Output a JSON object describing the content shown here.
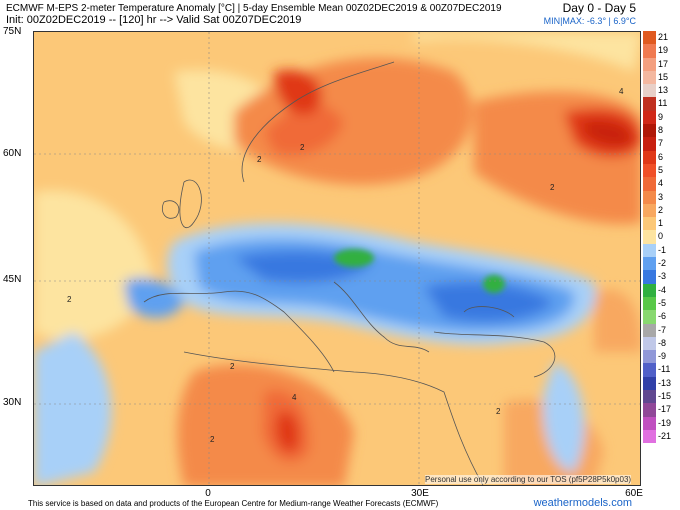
{
  "header": {
    "line1": "ECMWF M-EPS 2-meter Temperature Anomaly [°C] | 5-day Ensemble Mean 00Z02DEC2019 & 00Z07DEC2019",
    "line2": "Init: 00Z02DEC2019 -- [120] hr --> Valid Sat 00Z07DEC2019",
    "days": "Day 0 - Day 5",
    "minmax": "MIN|MAX: -6.3° | 6.9°C"
  },
  "axes": {
    "lat_labels": [
      "75N",
      "60N",
      "45N",
      "30N"
    ],
    "lon_labels": [
      "0",
      "30E",
      "60E"
    ]
  },
  "contour_labels": [
    "2",
    "2",
    "4",
    "2",
    "2",
    "2",
    "2",
    "4",
    "2"
  ],
  "legend": {
    "items": [
      {
        "label": "21",
        "color": "#e05a20"
      },
      {
        "label": "19",
        "color": "#f07a50"
      },
      {
        "label": "17",
        "color": "#f4a080"
      },
      {
        "label": "15",
        "color": "#f4b8a0"
      },
      {
        "label": "13",
        "color": "#e8d0c8"
      },
      {
        "label": "11",
        "color": "#c03020"
      },
      {
        "label": "9",
        "color": "#d02818"
      },
      {
        "label": "8",
        "color": "#b01808"
      },
      {
        "label": "7",
        "color": "#c82010"
      },
      {
        "label": "6",
        "color": "#e03818"
      },
      {
        "label": "5",
        "color": "#f05028"
      },
      {
        "label": "4",
        "color": "#f06a38"
      },
      {
        "label": "3",
        "color": "#f48a4a"
      },
      {
        "label": "2",
        "color": "#f8a860"
      },
      {
        "label": "1",
        "color": "#fcc878"
      },
      {
        "label": "0",
        "color": "#fde4a0"
      },
      {
        "label": "-1",
        "color": "#a8d0f8"
      },
      {
        "label": "-2",
        "color": "#5fa0f0"
      },
      {
        "label": "-3",
        "color": "#3878e0"
      },
      {
        "label": "-4",
        "color": "#30b040"
      },
      {
        "label": "-5",
        "color": "#58c848"
      },
      {
        "label": "-6",
        "color": "#88d870"
      },
      {
        "label": "-7",
        "color": "#a8a8a8"
      },
      {
        "label": "-8",
        "color": "#c0c8e8"
      },
      {
        "label": "-9",
        "color": "#9098d8"
      },
      {
        "label": "-11",
        "color": "#5060c8"
      },
      {
        "label": "-13",
        "color": "#3040a8"
      },
      {
        "label": "-15",
        "color": "#604890"
      },
      {
        "label": "-17",
        "color": "#904898"
      },
      {
        "label": "-19",
        "color": "#c050c0"
      },
      {
        "label": "-21",
        "color": "#e070e0"
      }
    ]
  },
  "notice": "Personal use only according to our TOS (pf5P28P5k0p03)",
  "footer": "This service is based on data and products of the European Centre for Medium-range Weather Forecasts (ECMWF)",
  "brand": "weathermodels.com"
}
